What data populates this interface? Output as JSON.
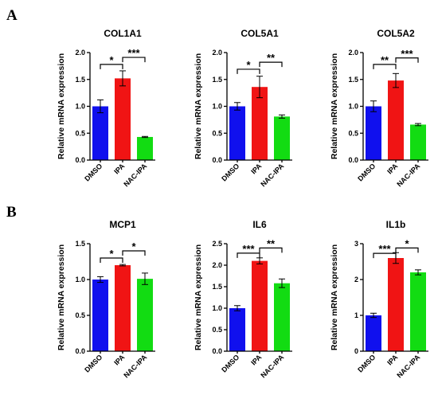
{
  "panels": [
    {
      "letter": "A"
    },
    {
      "letter": "B"
    }
  ],
  "chart_data": [
    {
      "type": "bar",
      "panel": "A",
      "title": "COL1A1",
      "ylabel": "Relative mRNA expression",
      "categories": [
        "DMSO",
        "IPA",
        "NAC-IPA"
      ],
      "colors": [
        "#1010ee",
        "#f01414",
        "#12dc12"
      ],
      "values": [
        1.0,
        1.52,
        0.43
      ],
      "errors": [
        0.12,
        0.14,
        0.01
      ],
      "ylim": [
        0,
        2.0
      ],
      "yticks": [
        "0.0",
        "0.5",
        "1.0",
        "1.5",
        "2.0"
      ],
      "significance": [
        {
          "from": 0,
          "to": 1,
          "label": "*",
          "y": 1.78
        },
        {
          "from": 1,
          "to": 2,
          "label": "***",
          "y": 1.91
        }
      ]
    },
    {
      "type": "bar",
      "panel": "A",
      "title": "COL5A1",
      "ylabel": "Relative mRNA expression",
      "categories": [
        "DMSO",
        "IPA",
        "NAC-IPA"
      ],
      "colors": [
        "#1010ee",
        "#f01414",
        "#12dc12"
      ],
      "values": [
        1.0,
        1.36,
        0.81
      ],
      "errors": [
        0.07,
        0.2,
        0.03
      ],
      "ylim": [
        0,
        2.0
      ],
      "yticks": [
        "0.0",
        "0.5",
        "1.0",
        "1.5",
        "2.0"
      ],
      "significance": [
        {
          "from": 0,
          "to": 1,
          "label": "*",
          "y": 1.69
        },
        {
          "from": 1,
          "to": 2,
          "label": "**",
          "y": 1.82
        }
      ]
    },
    {
      "type": "bar",
      "panel": "A",
      "title": "COL5A2",
      "ylabel": "Relative mRNA expression",
      "categories": [
        "DMSO",
        "IPA",
        "NAC-IPA"
      ],
      "colors": [
        "#1010ee",
        "#f01414",
        "#12dc12"
      ],
      "values": [
        1.0,
        1.48,
        0.66
      ],
      "errors": [
        0.1,
        0.13,
        0.02
      ],
      "ylim": [
        0,
        2.0
      ],
      "yticks": [
        "0.0",
        "0.5",
        "1.0",
        "1.5",
        "2.0"
      ],
      "significance": [
        {
          "from": 0,
          "to": 1,
          "label": "**",
          "y": 1.78
        },
        {
          "from": 1,
          "to": 2,
          "label": "***",
          "y": 1.9
        }
      ]
    },
    {
      "type": "bar",
      "panel": "B",
      "title": "MCP1",
      "ylabel": "Relative mRNA expression",
      "categories": [
        "DMSO",
        "IPA",
        "NAC-IPA"
      ],
      "colors": [
        "#1010ee",
        "#f01414",
        "#12dc12"
      ],
      "values": [
        1.0,
        1.2,
        1.01
      ],
      "errors": [
        0.04,
        0.01,
        0.08
      ],
      "ylim": [
        0.0,
        1.5
      ],
      "yticks": [
        "0.0",
        "0.5",
        "1.0",
        "1.5"
      ],
      "significance": [
        {
          "from": 0,
          "to": 1,
          "label": "*",
          "y": 1.3
        },
        {
          "from": 1,
          "to": 2,
          "label": "*",
          "y": 1.4
        }
      ]
    },
    {
      "type": "bar",
      "panel": "B",
      "title": "IL6",
      "ylabel": "Relative mRNA expression",
      "categories": [
        "DMSO",
        "IPA",
        "NAC-IPA"
      ],
      "colors": [
        "#1010ee",
        "#f01414",
        "#12dc12"
      ],
      "values": [
        1.0,
        2.1,
        1.58
      ],
      "errors": [
        0.06,
        0.07,
        0.1
      ],
      "ylim": [
        0.0,
        2.5
      ],
      "yticks": [
        "0.0",
        "0.5",
        "1.0",
        "1.5",
        "2.0",
        "2.5"
      ],
      "significance": [
        {
          "from": 0,
          "to": 1,
          "label": "***",
          "y": 2.28
        },
        {
          "from": 1,
          "to": 2,
          "label": "**",
          "y": 2.4
        }
      ]
    },
    {
      "type": "bar",
      "panel": "B",
      "title": "IL1b",
      "ylabel": "Relative mRNA expression",
      "categories": [
        "DMSO",
        "IPA",
        "NAC-IPA"
      ],
      "colors": [
        "#1010ee",
        "#f01414",
        "#12dc12"
      ],
      "values": [
        1.0,
        2.6,
        2.2
      ],
      "errors": [
        0.06,
        0.15,
        0.07
      ],
      "ylim": [
        0,
        3
      ],
      "yticks": [
        "0",
        "1",
        "2",
        "3"
      ],
      "significance": [
        {
          "from": 0,
          "to": 1,
          "label": "***",
          "y": 2.73
        },
        {
          "from": 1,
          "to": 2,
          "label": "*",
          "y": 2.88
        }
      ]
    }
  ]
}
